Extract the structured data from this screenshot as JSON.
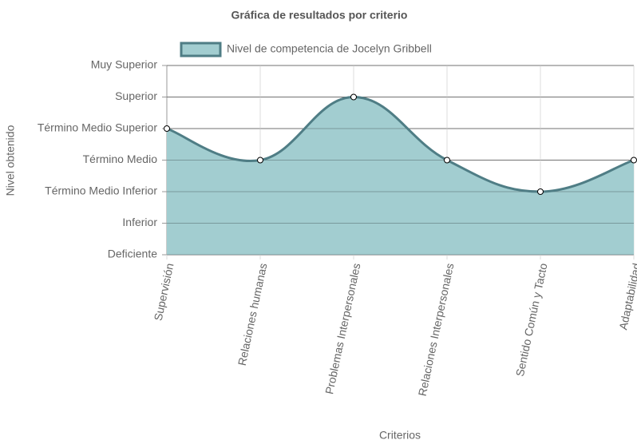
{
  "chart_data": {
    "type": "area",
    "title": "Gráfica de resultados por criterio",
    "xlabel": "Criterios",
    "ylabel": "Nivel obtenido",
    "categories": [
      "Supervisión",
      "Relaciones humanas",
      "Problemas Interpersonales",
      "Relaciones Interpersonales",
      "Sentido Común y Tacto",
      "Adaptabilidad"
    ],
    "series": [
      {
        "name": "Nivel de competencia de Jocelyn Gribbell",
        "color": "#4f7d85",
        "fill_color": "#a2cdd0",
        "values": [
          4,
          3,
          5,
          3,
          2,
          3
        ]
      }
    ],
    "ylim": [
      0,
      6
    ],
    "yticks": [
      {
        "value": 0,
        "label": "Deficiente"
      },
      {
        "value": 1,
        "label": "Inferior"
      },
      {
        "value": 2,
        "label": "Término Medio Inferior"
      },
      {
        "value": 3,
        "label": "Término Medio"
      },
      {
        "value": 4,
        "label": "Término Medio Superior"
      },
      {
        "value": 5,
        "label": "Superior"
      },
      {
        "value": 6,
        "label": "Muy Superior"
      }
    ],
    "grid": true,
    "legend": "top"
  }
}
